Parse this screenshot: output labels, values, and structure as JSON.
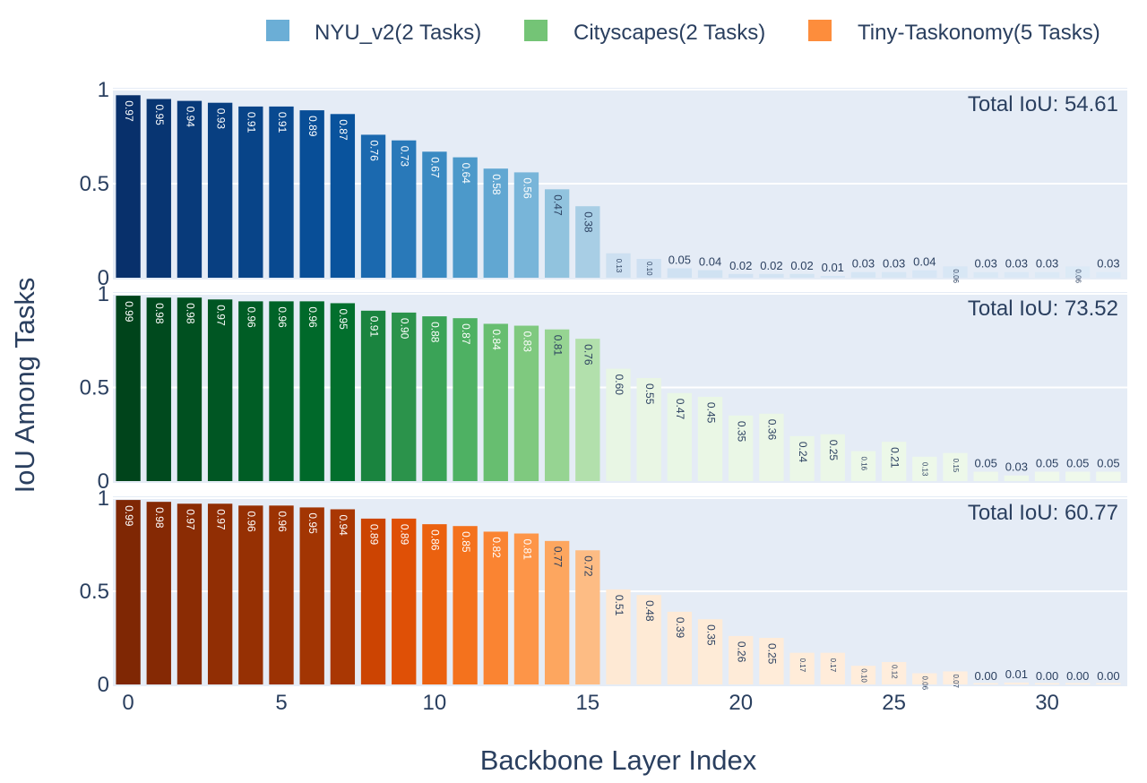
{
  "chart_data": {
    "type": "bar",
    "ylabel": "IoU Among Tasks",
    "xlabel": "Backbone Layer Index",
    "xlim": [
      -0.5,
      32.5
    ],
    "ylim": [
      0,
      1
    ],
    "x_ticks": [
      0,
      5,
      10,
      15,
      20,
      25,
      30
    ],
    "y_ticks": [
      {
        "value": 0,
        "label": "0"
      },
      {
        "value": 0.5,
        "label": "0.5"
      },
      {
        "value": 1,
        "label": "1"
      }
    ],
    "categories": [
      0,
      1,
      2,
      3,
      4,
      5,
      6,
      7,
      8,
      9,
      10,
      11,
      12,
      13,
      14,
      15,
      16,
      17,
      18,
      19,
      20,
      21,
      22,
      23,
      24,
      25,
      26,
      27,
      28,
      29,
      30,
      31,
      32
    ],
    "legend": [
      {
        "name": "NYU_v2(2 Tasks)",
        "color": "#6baed6"
      },
      {
        "name": "Cityscapes(2 Tasks)",
        "color": "#74c476"
      },
      {
        "name": "Tiny-Taskonomy(5 Tasks)",
        "color": "#fd8d3c"
      }
    ],
    "series": [
      {
        "name": "NYU_v2(2 Tasks)",
        "palette": "blues",
        "total_label": "Total IoU: 54.61",
        "values": [
          0.97,
          0.95,
          0.94,
          0.93,
          0.91,
          0.91,
          0.89,
          0.87,
          0.76,
          0.73,
          0.67,
          0.64,
          0.58,
          0.56,
          0.47,
          0.38,
          0.13,
          0.1,
          0.05,
          0.04,
          0.02,
          0.02,
          0.02,
          0.01,
          0.03,
          0.03,
          0.04,
          0.06,
          0.03,
          0.03,
          0.03,
          0.06,
          0.03
        ],
        "labels": [
          "0.97",
          "0.95",
          "0.94",
          "0.93",
          "0.91",
          "0.91",
          "0.89",
          "0.87",
          "0.76",
          "0.73",
          "0.67",
          "0.64",
          "0.58",
          "0.56",
          "0.47",
          "0.38",
          "0.13",
          "0.10",
          "0.05",
          "0.04",
          "0.02",
          "0.02",
          "0.02",
          "0.01",
          "0.03",
          "0.03",
          "0.04",
          "0.06",
          "0.03",
          "0.03",
          "0.03",
          "0.06",
          "0.03"
        ]
      },
      {
        "name": "Cityscapes(2 Tasks)",
        "palette": "greens",
        "total_label": "Total IoU: 73.52",
        "values": [
          0.99,
          0.98,
          0.98,
          0.97,
          0.96,
          0.96,
          0.96,
          0.95,
          0.91,
          0.9,
          0.88,
          0.87,
          0.84,
          0.83,
          0.81,
          0.76,
          0.6,
          0.55,
          0.47,
          0.45,
          0.35,
          0.36,
          0.24,
          0.25,
          0.16,
          0.21,
          0.13,
          0.15,
          0.05,
          0.03,
          0.05,
          0.05,
          0.05
        ],
        "labels": [
          "0.99",
          "0.98",
          "0.98",
          "0.97",
          "0.96",
          "0.96",
          "0.96",
          "0.95",
          "0.91",
          "0.90",
          "0.88",
          "0.87",
          "0.84",
          "0.83",
          "0.81",
          "0.76",
          "0.60",
          "0.55",
          "0.47",
          "0.45",
          "0.35",
          "0.36",
          "0.24",
          "0.25",
          "0.16",
          "0.21",
          "0.13",
          "0.15",
          "0.05",
          "0.03",
          "0.05",
          "0.05",
          "0.05"
        ]
      },
      {
        "name": "Tiny-Taskonomy(5 Tasks)",
        "palette": "oranges",
        "total_label": "Total IoU: 60.77",
        "values": [
          0.99,
          0.98,
          0.97,
          0.97,
          0.96,
          0.96,
          0.95,
          0.94,
          0.89,
          0.89,
          0.86,
          0.85,
          0.82,
          0.81,
          0.77,
          0.72,
          0.51,
          0.48,
          0.39,
          0.35,
          0.26,
          0.25,
          0.17,
          0.17,
          0.1,
          0.12,
          0.06,
          0.07,
          0.0,
          0.01,
          0.0,
          0.0,
          0.0
        ],
        "labels": [
          "0.99",
          "0.98",
          "0.97",
          "0.97",
          "0.96",
          "0.96",
          "0.95",
          "0.94",
          "0.89",
          "0.89",
          "0.86",
          "0.85",
          "0.82",
          "0.81",
          "0.77",
          "0.72",
          "0.51",
          "0.48",
          "0.39",
          "0.35",
          "0.26",
          "0.25",
          "0.17",
          "0.17",
          "0.10",
          "0.12",
          "0.06",
          "0.07",
          "0.00",
          "0.01",
          "0.00",
          "0.00",
          "0.00"
        ]
      }
    ]
  }
}
